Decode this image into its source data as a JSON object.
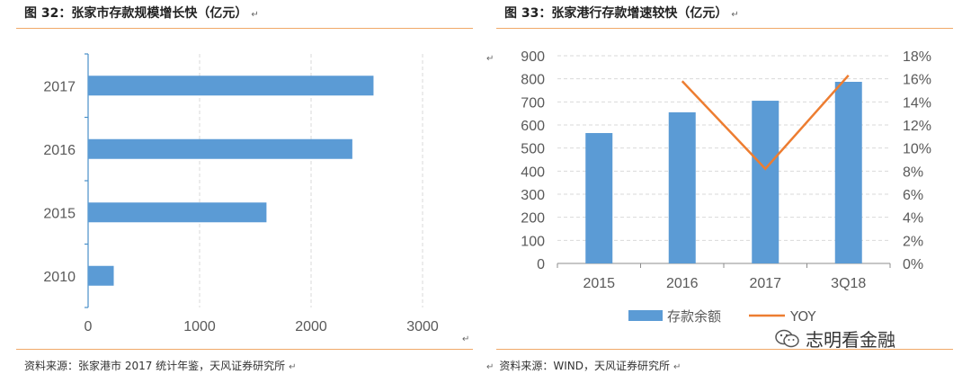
{
  "left_panel": {
    "title": "图 32：张家市存款规模增长快（亿元）",
    "source": "资料来源：张家港市 2017 统计年鉴，天风证券研究所"
  },
  "right_panel": {
    "title": "图 33：张家港行存款增速较快（亿元）",
    "source": "资料来源：WIND，天风证券研究所"
  },
  "return_mark": "↵",
  "watermark": {
    "text": "志明看金融",
    "icon": "wechat-icon"
  },
  "colors": {
    "bar": "#5b9bd5",
    "line": "#ed7d31",
    "rule": "#f0a868"
  },
  "chart_data": [
    {
      "type": "bar",
      "orientation": "horizontal",
      "categories": [
        "2017",
        "2016",
        "2015",
        "2010"
      ],
      "values": [
        2560,
        2370,
        1600,
        230
      ],
      "xlim": [
        0,
        3000
      ],
      "xticks": [
        "0",
        "1000",
        "2000",
        "3000"
      ],
      "grid": true
    },
    {
      "type": "bar+line",
      "categories": [
        "2015",
        "2016",
        "2017",
        "3Q18"
      ],
      "series": [
        {
          "name": "存款余额",
          "type": "bar",
          "axis": "left",
          "values": [
            565,
            655,
            705,
            787
          ]
        },
        {
          "name": "YOY",
          "type": "line",
          "axis": "right",
          "values": [
            null,
            15.8,
            8.2,
            16.3
          ]
        }
      ],
      "ylim_left": [
        0,
        900
      ],
      "ylim_right": [
        0,
        18
      ],
      "yticks_left": [
        "0",
        "100",
        "200",
        "300",
        "400",
        "500",
        "600",
        "700",
        "800",
        "900"
      ],
      "yticks_right": [
        "0%",
        "2%",
        "4%",
        "6%",
        "8%",
        "10%",
        "12%",
        "14%",
        "16%",
        "18%"
      ],
      "legend": "bottom",
      "grid": true
    }
  ]
}
